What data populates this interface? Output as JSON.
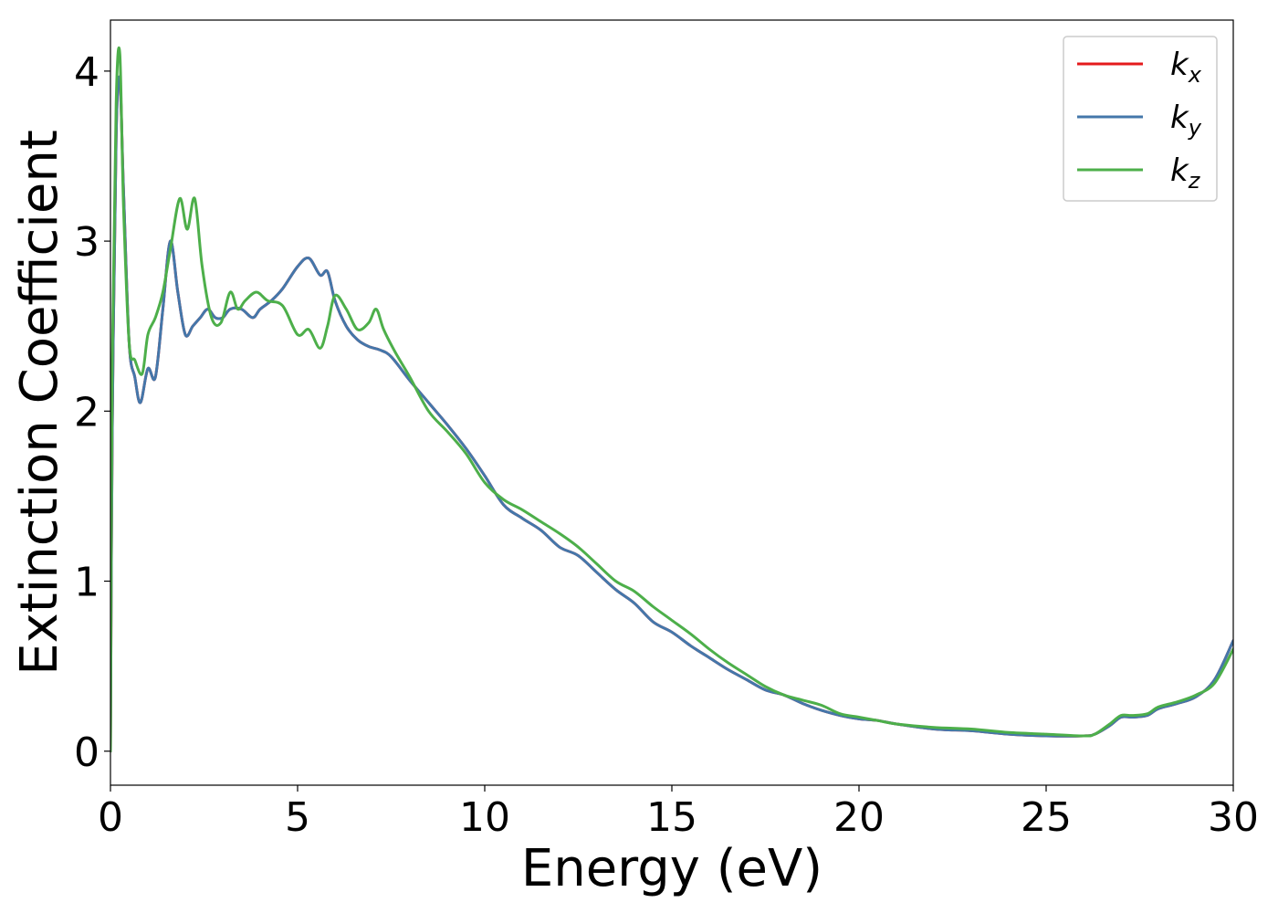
{
  "chart_data": {
    "type": "line",
    "title": "",
    "xlabel": "Energy (eV)",
    "ylabel": "Extinction Coefficient",
    "xlim": [
      0,
      30
    ],
    "ylim": [
      -0.2,
      4.3
    ],
    "xticks": [
      0,
      5,
      10,
      15,
      20,
      25,
      30
    ],
    "xtick_labels": [
      "0",
      "5",
      "10",
      "15",
      "20",
      "25",
      "30"
    ],
    "yticks": [
      0,
      1,
      2,
      3,
      4
    ],
    "ytick_labels": [
      "0",
      "1",
      "2",
      "3",
      "4"
    ],
    "grid": false,
    "legend_position": "top-right",
    "series": [
      {
        "name": "k_x",
        "label_main": "k",
        "label_sub": "x",
        "color": "#e41a1c",
        "x": [
          0,
          0.05,
          0.15,
          0.25,
          0.35,
          0.5,
          0.65,
          0.8,
          1.0,
          1.2,
          1.4,
          1.6,
          1.8,
          2.0,
          2.2,
          2.4,
          2.6,
          2.8,
          3.0,
          3.2,
          3.5,
          3.8,
          4.0,
          4.3,
          4.6,
          5.0,
          5.3,
          5.6,
          5.8,
          6.0,
          6.3,
          6.6,
          6.9,
          7.2,
          7.5,
          8.0,
          8.5,
          9.0,
          9.5,
          10.0,
          10.5,
          11.0,
          11.5,
          12.0,
          12.5,
          13.0,
          13.5,
          14.0,
          14.5,
          15.0,
          15.5,
          16.0,
          16.5,
          17.0,
          17.5,
          18.0,
          18.5,
          19.0,
          19.5,
          20.0,
          20.5,
          21.0,
          22.0,
          23.0,
          24.0,
          25.0,
          26.0,
          26.3,
          26.7,
          27.0,
          27.3,
          27.7,
          28.0,
          28.5,
          29.0,
          29.5,
          30.0
        ],
        "y": [
          0,
          1.9,
          3.6,
          3.95,
          3.3,
          2.4,
          2.2,
          2.05,
          2.25,
          2.2,
          2.6,
          3.0,
          2.7,
          2.45,
          2.5,
          2.55,
          2.6,
          2.55,
          2.55,
          2.6,
          2.6,
          2.55,
          2.6,
          2.65,
          2.72,
          2.85,
          2.9,
          2.8,
          2.82,
          2.65,
          2.5,
          2.42,
          2.38,
          2.36,
          2.32,
          2.18,
          2.05,
          1.92,
          1.78,
          1.62,
          1.45,
          1.37,
          1.3,
          1.2,
          1.15,
          1.05,
          0.95,
          0.87,
          0.76,
          0.7,
          0.62,
          0.55,
          0.48,
          0.42,
          0.36,
          0.33,
          0.28,
          0.24,
          0.21,
          0.19,
          0.18,
          0.16,
          0.13,
          0.12,
          0.1,
          0.09,
          0.09,
          0.1,
          0.15,
          0.2,
          0.2,
          0.21,
          0.25,
          0.28,
          0.32,
          0.42,
          0.65
        ]
      },
      {
        "name": "k_y",
        "label_main": "k",
        "label_sub": "y",
        "color": "#4477aa",
        "x": [
          0,
          0.05,
          0.15,
          0.25,
          0.35,
          0.5,
          0.65,
          0.8,
          1.0,
          1.2,
          1.4,
          1.6,
          1.8,
          2.0,
          2.2,
          2.4,
          2.6,
          2.8,
          3.0,
          3.2,
          3.5,
          3.8,
          4.0,
          4.3,
          4.6,
          5.0,
          5.3,
          5.6,
          5.8,
          6.0,
          6.3,
          6.6,
          6.9,
          7.2,
          7.5,
          8.0,
          8.5,
          9.0,
          9.5,
          10.0,
          10.5,
          11.0,
          11.5,
          12.0,
          12.5,
          13.0,
          13.5,
          14.0,
          14.5,
          15.0,
          15.5,
          16.0,
          16.5,
          17.0,
          17.5,
          18.0,
          18.5,
          19.0,
          19.5,
          20.0,
          20.5,
          21.0,
          22.0,
          23.0,
          24.0,
          25.0,
          26.0,
          26.3,
          26.7,
          27.0,
          27.3,
          27.7,
          28.0,
          28.5,
          29.0,
          29.5,
          30.0
        ],
        "y": [
          0,
          1.9,
          3.6,
          3.95,
          3.3,
          2.4,
          2.2,
          2.05,
          2.25,
          2.2,
          2.6,
          3.0,
          2.7,
          2.45,
          2.5,
          2.55,
          2.6,
          2.55,
          2.55,
          2.6,
          2.6,
          2.55,
          2.6,
          2.65,
          2.72,
          2.85,
          2.9,
          2.8,
          2.82,
          2.65,
          2.5,
          2.42,
          2.38,
          2.36,
          2.32,
          2.18,
          2.05,
          1.92,
          1.78,
          1.62,
          1.45,
          1.37,
          1.3,
          1.2,
          1.15,
          1.05,
          0.95,
          0.87,
          0.76,
          0.7,
          0.62,
          0.55,
          0.48,
          0.42,
          0.36,
          0.33,
          0.28,
          0.24,
          0.21,
          0.19,
          0.18,
          0.16,
          0.13,
          0.12,
          0.1,
          0.09,
          0.09,
          0.1,
          0.15,
          0.2,
          0.2,
          0.21,
          0.25,
          0.28,
          0.32,
          0.42,
          0.65
        ]
      },
      {
        "name": "k_z",
        "label_main": "k",
        "label_sub": "z",
        "color": "#4daf4a",
        "x": [
          0,
          0.05,
          0.15,
          0.25,
          0.35,
          0.5,
          0.65,
          0.85,
          1.0,
          1.2,
          1.4,
          1.6,
          1.85,
          2.05,
          2.25,
          2.45,
          2.7,
          2.95,
          3.2,
          3.4,
          3.6,
          3.9,
          4.2,
          4.6,
          5.0,
          5.3,
          5.6,
          5.8,
          6.0,
          6.3,
          6.6,
          6.9,
          7.1,
          7.3,
          7.6,
          8.0,
          8.5,
          9.0,
          9.5,
          10.0,
          10.5,
          11.0,
          11.5,
          12.0,
          12.5,
          13.0,
          13.5,
          14.0,
          14.5,
          15.0,
          15.5,
          16.0,
          16.5,
          17.0,
          17.5,
          18.0,
          18.5,
          19.0,
          19.5,
          20.0,
          20.5,
          21.0,
          22.0,
          23.0,
          24.0,
          25.0,
          26.0,
          26.3,
          26.7,
          27.0,
          27.3,
          27.7,
          28.0,
          28.5,
          29.0,
          29.5,
          30.0
        ],
        "y": [
          0,
          2.3,
          3.8,
          4.1,
          3.2,
          2.4,
          2.3,
          2.22,
          2.45,
          2.55,
          2.7,
          2.95,
          3.25,
          3.07,
          3.25,
          2.85,
          2.55,
          2.52,
          2.7,
          2.6,
          2.65,
          2.7,
          2.65,
          2.62,
          2.45,
          2.48,
          2.37,
          2.5,
          2.68,
          2.6,
          2.48,
          2.52,
          2.6,
          2.48,
          2.35,
          2.2,
          2.0,
          1.88,
          1.75,
          1.58,
          1.48,
          1.42,
          1.35,
          1.28,
          1.2,
          1.1,
          1.0,
          0.94,
          0.85,
          0.77,
          0.69,
          0.6,
          0.52,
          0.45,
          0.38,
          0.33,
          0.3,
          0.27,
          0.22,
          0.2,
          0.18,
          0.16,
          0.14,
          0.13,
          0.11,
          0.1,
          0.09,
          0.1,
          0.16,
          0.21,
          0.21,
          0.22,
          0.26,
          0.29,
          0.33,
          0.4,
          0.6
        ]
      }
    ]
  }
}
